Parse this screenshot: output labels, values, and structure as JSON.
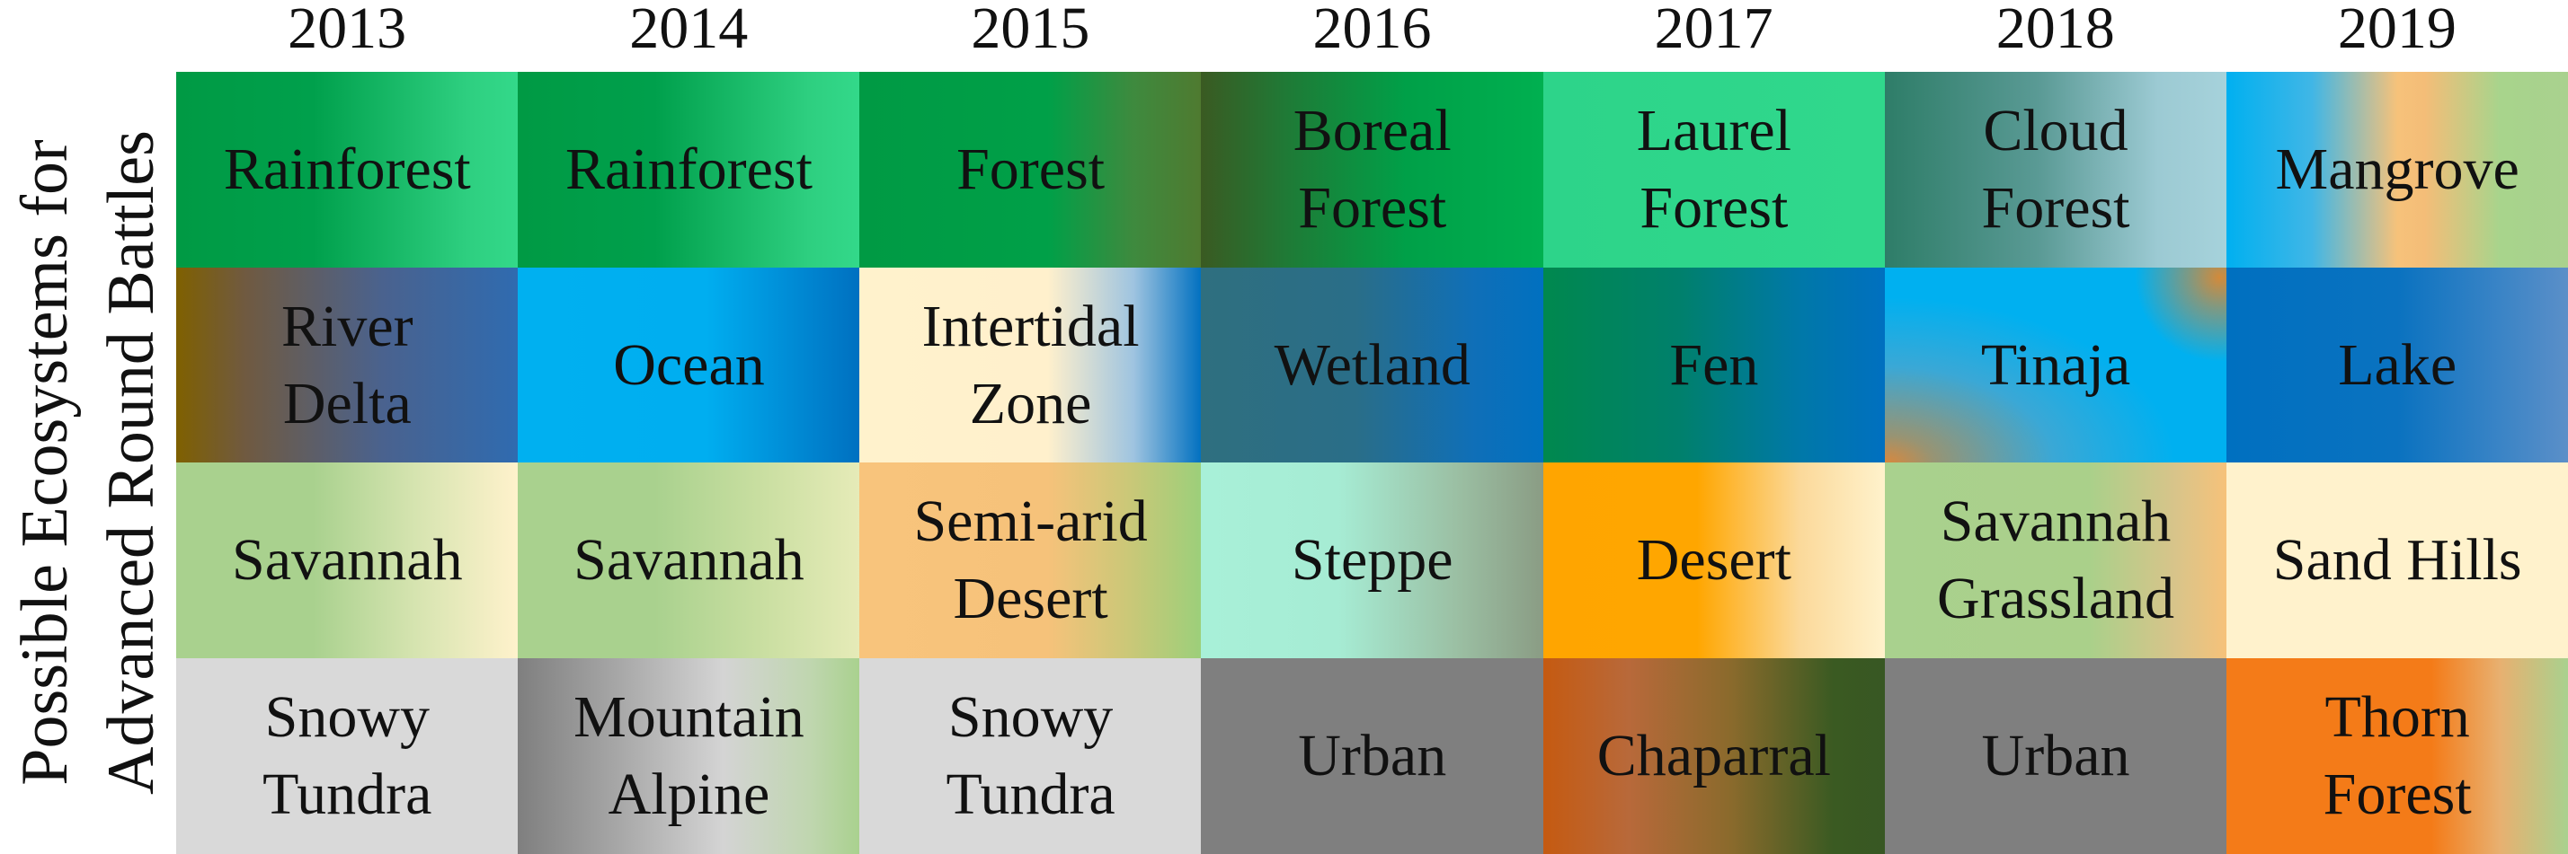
{
  "y_label": "Possible Ecosystems for\nAdvanced Round Battles",
  "years": [
    "2013",
    "2014",
    "2015",
    "2016",
    "2017",
    "2018",
    "2019"
  ],
  "rows": [
    [
      {
        "label": "Rainforest",
        "bg": "linear-gradient(90deg,#009a44 0%,#00a04c 40%,#2ecf80 85%,#33d98a 100%)"
      },
      {
        "label": "Rainforest",
        "bg": "linear-gradient(90deg,#009a44 0%,#00a04c 40%,#2ecf80 85%,#33d98a 100%)"
      },
      {
        "label": "Forest",
        "bg": "linear-gradient(90deg,#009a44 0%,#00a048 55%,#3e8a3e 80%,#4f7a30 100%)"
      },
      {
        "label": "Boreal\nForest",
        "bg": "linear-gradient(90deg,#3a5a22 0%,#1f7a36 25%,#00a048 60%,#00b050 100%)"
      },
      {
        "label": "Laurel\nForest",
        "bg": "linear-gradient(90deg,#2dd48a 0%,#30d88c 100%)"
      },
      {
        "label": "Cloud\nForest",
        "bg": "linear-gradient(90deg,#2e7d68 0%,#5a9a95 45%,#9ccad3 80%,#a6d2db 100%)"
      },
      {
        "label": "Mangrove",
        "bg": "linear-gradient(90deg,#00b0f0 0%,#40b6e6 25%,#f6c27a 50%,#f4bd78 58%,#a8d48c 80%,#a9d18e 100%)"
      }
    ],
    [
      {
        "label": "River\nDelta",
        "bg": "linear-gradient(90deg,#7f6000 0%,#705a40 20%,#4a628e 60%,#2f6bb0 100%)"
      },
      {
        "label": "Ocean",
        "bg": "linear-gradient(90deg,#00b0f0 0%,#00aef0 55%,#0070c0 100%)"
      },
      {
        "label": "Intertidal\nZone",
        "bg": "linear-gradient(90deg,#fff2cc 0%,#fff0cc 55%,#9fc4e0 80%,#0070c0 100%)"
      },
      {
        "label": "Wetland",
        "bg": "linear-gradient(90deg,#2f6f7f 0%,#2a6e88 45%,#0f6fb8 80%,#0070c0 100%)"
      },
      {
        "label": "Fen",
        "bg": "linear-gradient(90deg,#00884e 0%,#00806c 40%,#0078a8 75%,#0070c0 100%)"
      },
      {
        "label": "Tinaja",
        "bg": "radial-gradient(circle at 98% 5%,#d38a3a 0%,rgba(211,138,58,0.6) 8%,rgba(0,176,240,0) 22%),radial-gradient(ellipse at 0% 100%,#d9883d 0%,rgba(217,136,61,0.7) 10%,#3aa8d6 35%,#00b0f0 60%),linear-gradient(90deg,#00b0f0,#00b0f0)"
      },
      {
        "label": "Lake",
        "bg": "linear-gradient(90deg,#0070c0 0%,#0a72c0 50%,#3a84c6 80%,#5b8fc8 100%)"
      }
    ],
    [
      {
        "label": "Savannah",
        "bg": "linear-gradient(90deg,#a9d18e 0%,#a9d18e 40%,#d6e4b0 70%,#fff2cc 100%)"
      },
      {
        "label": "Savannah",
        "bg": "linear-gradient(90deg,#a9d18e 0%,#a9d18e 40%,#c8dea0 70%,#e6ebb8 100%)"
      },
      {
        "label": "Semi-arid\nDesert",
        "bg": "linear-gradient(90deg,#f8c47c 0%,#f6c27a 55%,#c8c878 80%,#9ccf7a 100%)"
      },
      {
        "label": "Steppe",
        "bg": "linear-gradient(90deg,#a8f0d8 0%,#a6ecd4 40%,#9bbfa3 75%,#8a9c84 100%)"
      },
      {
        "label": "Desert",
        "bg": "linear-gradient(90deg,#ffa500 0%,#ffa600 45%,#fbd99a 75%,#fff2cc 100%)"
      },
      {
        "label": "Savannah\nGrassland",
        "bg": "linear-gradient(90deg,#a9d18e 0%,#aad08a 60%,#d8c48a 85%,#f6c27a 100%)"
      },
      {
        "label": "Sand Hills",
        "bg": "linear-gradient(90deg,#fff2cc 0%,#fff2cc 100%)"
      }
    ],
    [
      {
        "label": "Snowy\nTundra",
        "bg": "linear-gradient(90deg,#d9d9d9 0%,#d9d9d9 100%)"
      },
      {
        "label": "Mountain\nAlpine",
        "bg": "linear-gradient(90deg,#7f7f7f 0%,#a8a8a8 30%,#d4d4d4 60%,#c0d6b0 85%,#a9d18e 100%)"
      },
      {
        "label": "Snowy\nTundra",
        "bg": "linear-gradient(90deg,#d9d9d9 0%,#d9d9d9 100%)"
      },
      {
        "label": "Urban",
        "bg": "linear-gradient(90deg,#7f7f7f 0%,#7f7f7f 100%)"
      },
      {
        "label": "Chaparral",
        "bg": "linear-gradient(90deg,#c55a11 0%,#b8693a 25%,#8a6a2c 55%,#3a5a22 85%,#385723 100%)"
      },
      {
        "label": "Urban",
        "bg": "linear-gradient(90deg,#7f7f7f 0%,#7f7f7f 100%)"
      },
      {
        "label": "Thorn\nForest",
        "bg": "linear-gradient(90deg,#f47b18 0%,#f47b18 60%,#e8b070 80%,#a9d18e 100%)"
      }
    ]
  ]
}
